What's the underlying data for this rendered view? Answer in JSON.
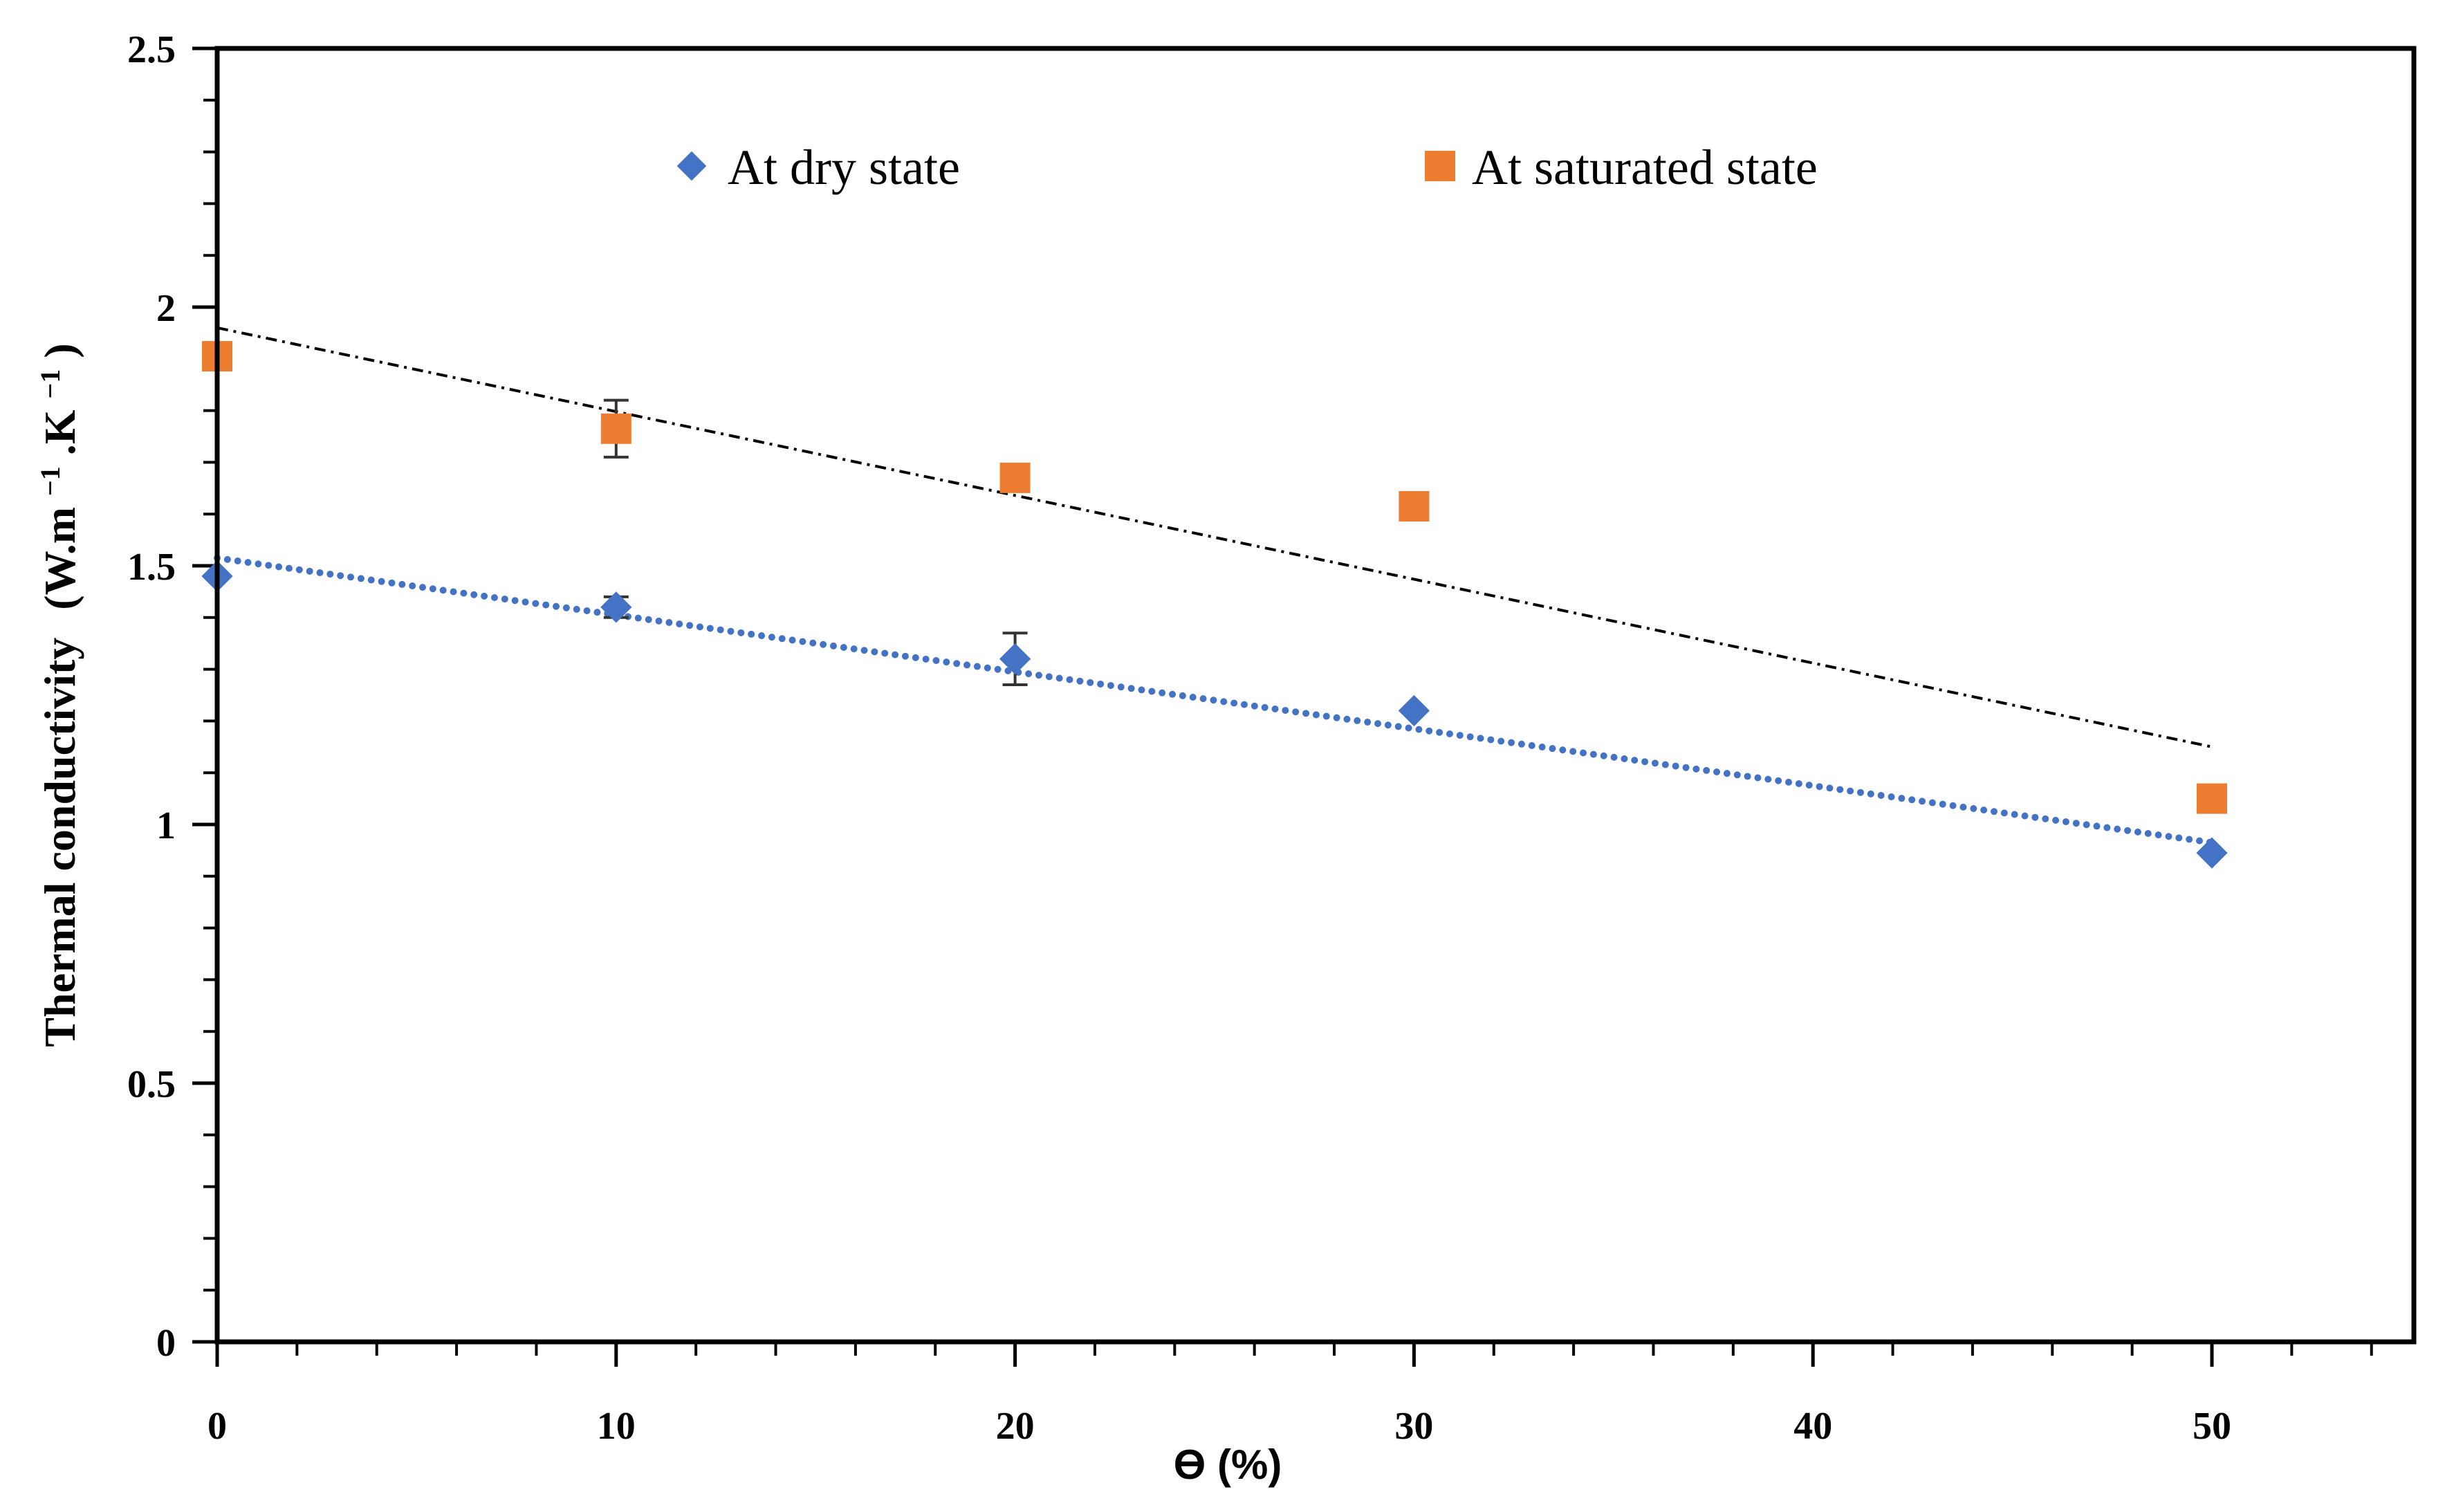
{
  "chart_data": {
    "type": "scatter",
    "xlabel": "ϴ (%)",
    "ylabel": {
      "main": "Thermal conductivity",
      "unit": "(W.m",
      "sup1": "−1",
      "mid": ".K",
      "sup2": "−1",
      "close": ")"
    },
    "xlim": [
      0,
      55
    ],
    "ylim": [
      0,
      2.5
    ],
    "x_ticks": [
      0,
      10,
      20,
      30,
      40,
      50
    ],
    "x_minor_step": 2,
    "y_ticks": [
      0,
      0.5,
      1,
      1.5,
      2,
      2.5
    ],
    "y_tick_labels": [
      "0",
      "0.5",
      "1",
      "1.5",
      "2",
      "2.5"
    ],
    "y_minor_step": 0.1,
    "legend_position": "top",
    "series": [
      {
        "name": "At dry state",
        "marker": "diamond",
        "color": "#4472C4",
        "x": [
          0,
          10,
          20,
          30,
          50
        ],
        "y": [
          1.48,
          1.42,
          1.32,
          1.22,
          0.945
        ],
        "error": [
          0,
          0.02,
          0.05,
          0,
          0
        ],
        "trendline": {
          "style": "dotted",
          "color": "#4472C4",
          "x": [
            0,
            50
          ],
          "y": [
            1.515,
            0.965
          ]
        }
      },
      {
        "name": "At saturated state",
        "marker": "square",
        "color": "#ED7D31",
        "x": [
          0,
          10,
          20,
          30,
          50
        ],
        "y": [
          1.905,
          1.765,
          1.67,
          1.615,
          1.05
        ],
        "error": [
          0,
          0.055,
          0.02,
          0,
          0
        ],
        "trendline": {
          "style": "dash-dot",
          "color": "#000000",
          "x": [
            0,
            50
          ],
          "y": [
            1.96,
            1.15
          ]
        }
      }
    ]
  }
}
